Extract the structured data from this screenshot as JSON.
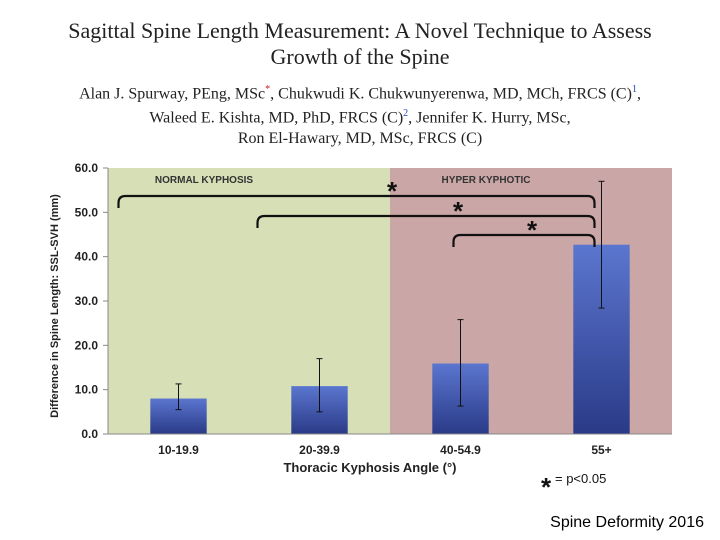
{
  "paper": {
    "title_line1": "Sagittal Spine Length Measurement: A Novel Technique to Assess",
    "title_line2": "Growth of the Spine",
    "author_line1_a": "Alan J. Spurway, PEng, MSc",
    "author_line1_sup1": "*",
    "author_line1_b": ", Chukwudi K. Chukwunyerenwa, MD, MCh, FRCS (C)",
    "author_line1_sup2": "1",
    "author_line1_c": ",",
    "author_line2_a": "Waleed E. Kishta, MD, PhD, FRCS (C)",
    "author_line2_sup": "2",
    "author_line2_b": ", Jennifer K. Hurry, MSc,",
    "author_line3": "Ron El-Hawary, MD, MSc, FRCS (C)"
  },
  "footer": {
    "text": "Spine Deformity 2016"
  },
  "colors": {
    "normal_region": "#d6dfb6",
    "hyper_region": "#cba6a6",
    "bar_top": "#5b76cf",
    "bar_bottom": "#2a3a87",
    "bracket": "#111111"
  },
  "chart_data": {
    "type": "bar",
    "title": "",
    "xlabel": "Thoracic Kyphosis Angle (°)",
    "ylabel": "Difference in Spine Length: SSL-SVH (mm)",
    "ylim": [
      0,
      60
    ],
    "yticks": [
      "0.0",
      "10.0",
      "20.0",
      "30.0",
      "40.0",
      "50.0",
      "60.0"
    ],
    "categories": [
      "10-19.9",
      "20-39.9",
      "40-54.9",
      "55+"
    ],
    "values": [
      8.0,
      10.8,
      15.9,
      42.7
    ],
    "error_low": [
      5.5,
      5.0,
      6.3,
      28.4
    ],
    "error_high": [
      11.3,
      17.0,
      25.8,
      57.0
    ],
    "regions": [
      {
        "label": "Normal Kyphosis",
        "from_category": 0,
        "to_category": 1,
        "color": "#d6dfb6"
      },
      {
        "label": "Hyper Kyphotic",
        "from_category": 2,
        "to_category": 3,
        "color": "#cba6a6"
      }
    ],
    "significance_brackets": [
      {
        "from": 0,
        "to": 3,
        "symbol": "*"
      },
      {
        "from": 1,
        "to": 3,
        "symbol": "*"
      },
      {
        "from": 2,
        "to": 3,
        "symbol": "*"
      }
    ],
    "significance_note": "= p<0.05",
    "significance_symbol": "*"
  }
}
